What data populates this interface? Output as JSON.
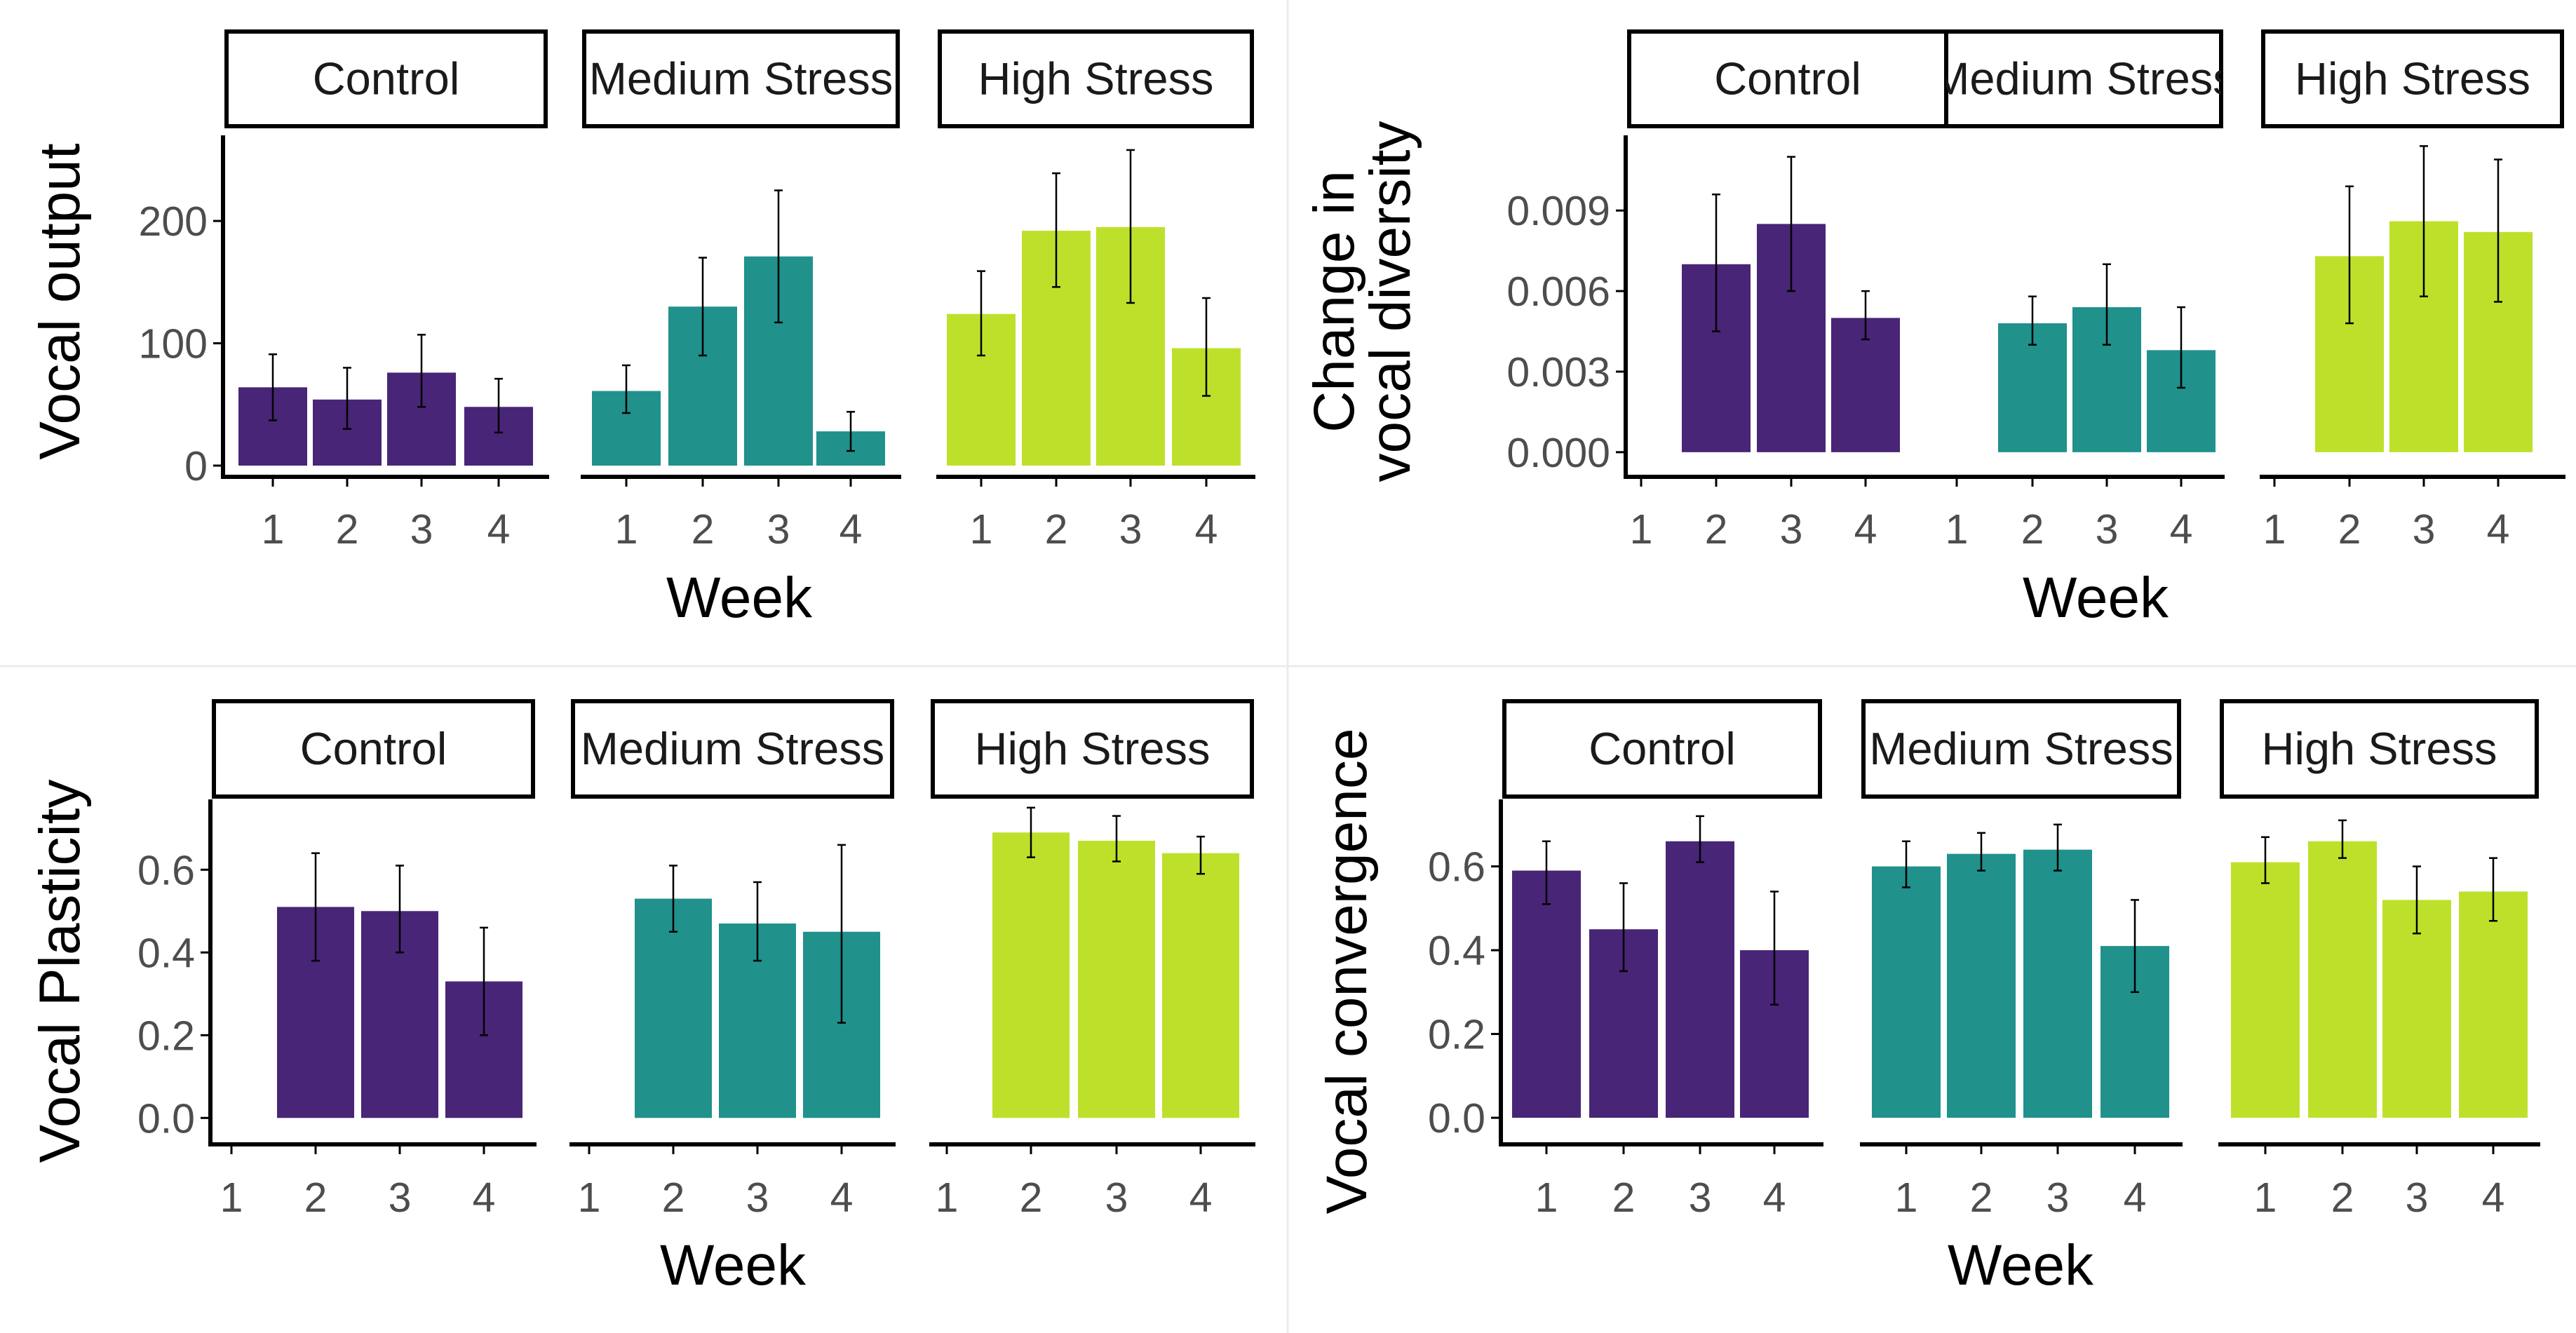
{
  "colors": {
    "Control": "#482576",
    "Medium Stress": "#21918c",
    "High Stress": "#bde12b",
    "axis": "#000000",
    "tick_label": "#4d4d4d",
    "divider": "#ebebeb"
  },
  "chart_data": [
    {
      "type": "bar",
      "facets": [
        "Control",
        "Medium Stress",
        "High Stress"
      ],
      "categories": [
        "1",
        "2",
        "3",
        "4"
      ],
      "xlabel": "Week",
      "ylabel_lines": [
        "Vocal output"
      ],
      "ylim": [
        0,
        270
      ],
      "yticks": [
        0,
        100,
        200
      ],
      "ytick_labels": [
        "0",
        "100",
        "200"
      ],
      "series": [
        {
          "name": "Control",
          "values": [
            64,
            54,
            76,
            48
          ],
          "lower": [
            37,
            30,
            48,
            27
          ],
          "upper": [
            91,
            80,
            107,
            71
          ]
        },
        {
          "name": "Medium Stress",
          "values": [
            61,
            130,
            171,
            28
          ],
          "lower": [
            43,
            90,
            117,
            12
          ],
          "upper": [
            82,
            170,
            225,
            44
          ]
        },
        {
          "name": "High Stress",
          "values": [
            124,
            192,
            195,
            96
          ],
          "lower": [
            90,
            146,
            133,
            57
          ],
          "upper": [
            159,
            239,
            258,
            137
          ]
        }
      ]
    },
    {
      "type": "bar",
      "facets": [
        "Control",
        "Medium Stress",
        "High Stress"
      ],
      "categories": [
        "1",
        "2",
        "3",
        "4"
      ],
      "xlabel": "Week",
      "ylabel_lines": [
        "Change in",
        "vocal diversity"
      ],
      "ylim": [
        -0.0005,
        0.0118
      ],
      "yticks": [
        0,
        0.003,
        0.006,
        0.009
      ],
      "ytick_labels": [
        "0.000",
        "0.003",
        "0.006",
        "0.009"
      ],
      "series": [
        {
          "name": "Control",
          "values": [
            null,
            0.007,
            0.0085,
            0.005
          ],
          "lower": [
            null,
            0.0045,
            0.006,
            0.0042
          ],
          "upper": [
            null,
            0.0096,
            0.011,
            0.006
          ]
        },
        {
          "name": "Medium Stress",
          "values": [
            null,
            0.0048,
            0.0054,
            0.0038
          ],
          "lower": [
            null,
            0.004,
            0.004,
            0.0024
          ],
          "upper": [
            null,
            0.0058,
            0.007,
            0.0054
          ]
        },
        {
          "name": "High Stress",
          "values": [
            null,
            0.0073,
            0.0086,
            0.0082
          ],
          "lower": [
            null,
            0.0048,
            0.0058,
            0.0056
          ],
          "upper": [
            null,
            0.0099,
            0.0114,
            0.0109
          ]
        }
      ]
    },
    {
      "type": "bar",
      "facets": [
        "Control",
        "Medium Stress",
        "High Stress"
      ],
      "categories": [
        "1",
        "2",
        "3",
        "4"
      ],
      "xlabel": "Week",
      "ylabel_lines": [
        "Vocal Plasticity"
      ],
      "ylim": [
        -0.03,
        0.77
      ],
      "yticks": [
        0,
        0.2,
        0.4,
        0.6
      ],
      "ytick_labels": [
        "0.0",
        "0.2",
        "0.4",
        "0.6"
      ],
      "series": [
        {
          "name": "Control",
          "values": [
            null,
            0.51,
            0.5,
            0.33
          ],
          "lower": [
            null,
            0.38,
            0.4,
            0.2
          ],
          "upper": [
            null,
            0.64,
            0.61,
            0.46
          ]
        },
        {
          "name": "Medium Stress",
          "values": [
            null,
            0.53,
            0.47,
            0.45
          ],
          "lower": [
            null,
            0.45,
            0.38,
            0.23
          ],
          "upper": [
            null,
            0.61,
            0.57,
            0.66
          ]
        },
        {
          "name": "High Stress",
          "values": [
            null,
            0.69,
            0.67,
            0.64
          ],
          "lower": [
            null,
            0.63,
            0.62,
            0.59
          ],
          "upper": [
            null,
            0.75,
            0.73,
            0.68
          ]
        }
      ]
    },
    {
      "type": "bar",
      "facets": [
        "Control",
        "Medium Stress",
        "High Stress"
      ],
      "categories": [
        "1",
        "2",
        "3",
        "4"
      ],
      "xlabel": "Week",
      "ylabel_lines": [
        "Vocal convergence"
      ],
      "ylim": [
        -0.03,
        0.76
      ],
      "yticks": [
        0,
        0.2,
        0.4,
        0.6
      ],
      "ytick_labels": [
        "0.0",
        "0.2",
        "0.4",
        "0.6"
      ],
      "series": [
        {
          "name": "Control",
          "values": [
            0.59,
            0.45,
            0.66,
            0.4
          ],
          "lower": [
            0.51,
            0.35,
            0.61,
            0.27
          ],
          "upper": [
            0.66,
            0.56,
            0.72,
            0.54
          ]
        },
        {
          "name": "Medium Stress",
          "values": [
            0.6,
            0.63,
            0.64,
            0.41
          ],
          "lower": [
            0.55,
            0.59,
            0.59,
            0.3
          ],
          "upper": [
            0.66,
            0.68,
            0.7,
            0.52
          ]
        },
        {
          "name": "High Stress",
          "values": [
            0.61,
            0.66,
            0.52,
            0.54
          ],
          "lower": [
            0.56,
            0.62,
            0.44,
            0.47
          ],
          "upper": [
            0.67,
            0.71,
            0.6,
            0.62
          ]
        }
      ]
    }
  ]
}
